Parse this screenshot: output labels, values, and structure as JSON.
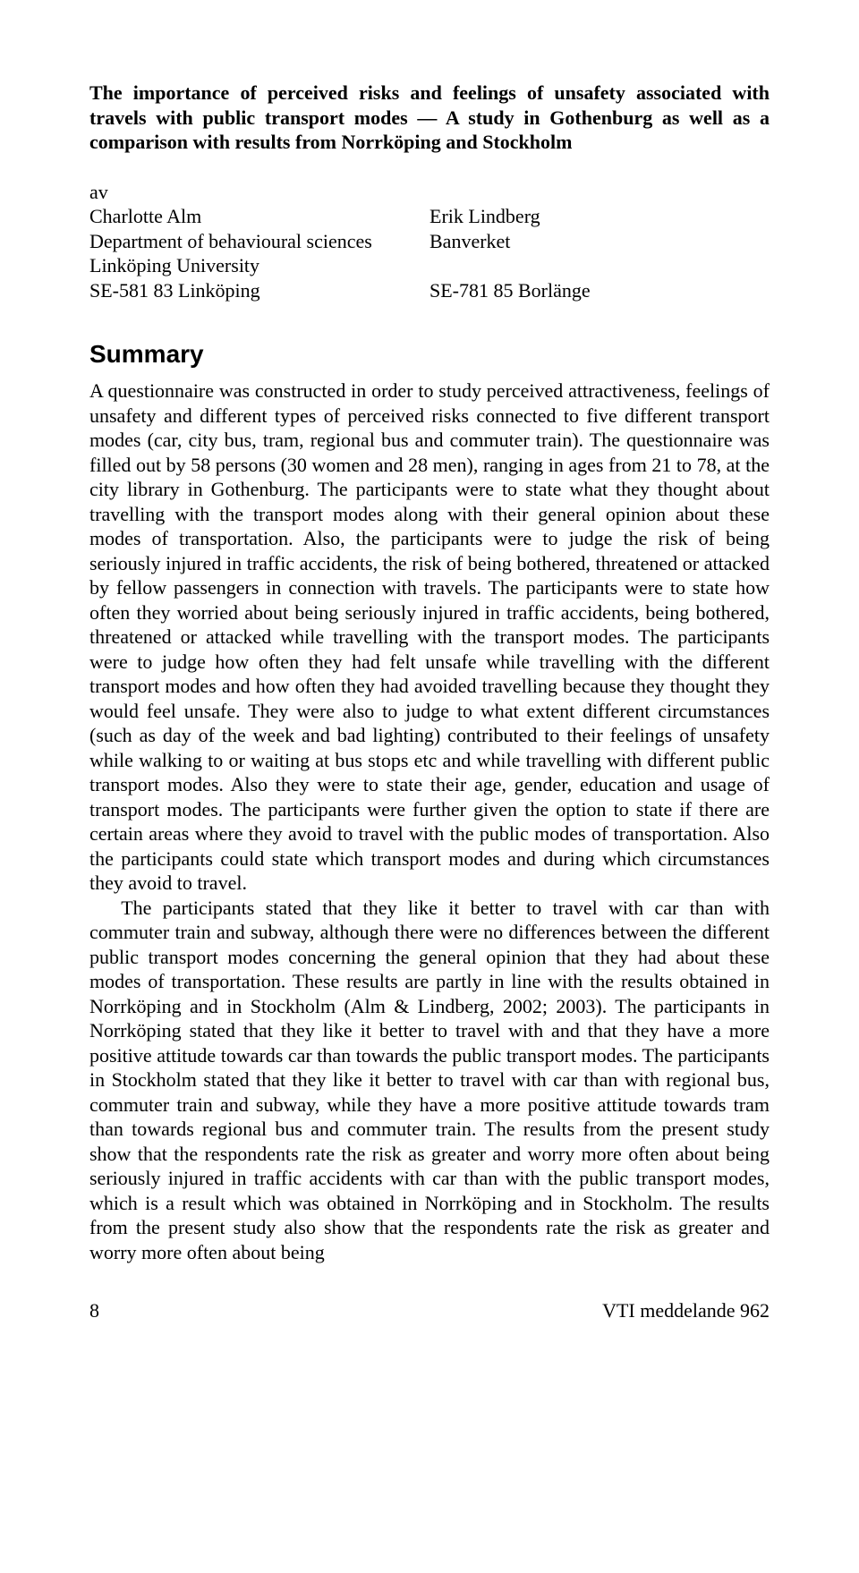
{
  "title": "The importance of perceived risks and feelings of unsafety associated with travels with public transport modes — A study in Gothenburg as well as a comparison with results from Norrköping and Stockholm",
  "authors": {
    "by_label": "av",
    "left": {
      "name": "Charlotte Alm",
      "dept": "Department of behavioural sciences",
      "uni": "Linköping University",
      "addr": "SE-581 83 Linköping"
    },
    "right": {
      "name": "Erik Lindberg",
      "org": "Banverket",
      "addr": "SE-781 85 Borlänge"
    }
  },
  "summary_heading": "Summary",
  "summary_p1": "A questionnaire was constructed in order to study perceived attractiveness, feelings of unsafety and different types of perceived risks connected to five different transport modes (car, city bus, tram, regional bus and commuter train). The questionnaire was filled out by 58 persons (30 women and 28 men), ranging in ages from 21 to 78, at the city library in Gothenburg. The participants were to state what they thought about travelling with the transport modes along with their general opinion about these modes of transportation. Also, the participants were to judge the risk of being seriously injured in traffic accidents, the risk of being bothered, threatened or attacked by fellow passengers in connection with travels. The participants were to state how often they worried about being seriously injured in traffic accidents, being bothered, threatened or attacked while travelling with the transport modes. The participants were to judge how often they had felt unsafe while travelling with the different transport modes and how often they had avoided travelling because they thought they would feel unsafe. They were also to judge to what extent different circumstances (such as day of the week and bad lighting) contributed to their feelings of unsafety while walking to or waiting at bus stops etc and while travelling with different public transport modes. Also they were to state their age, gender, education and usage of transport modes. The participants were further given the option to state if there are certain areas where they avoid to travel with the public modes of transportation. Also the participants could state which transport modes and during which circumstances they avoid to travel.",
  "summary_p2": "The participants stated that they like it better to travel with car than with commuter train and subway, although there were no differences between the different public transport modes concerning the general opinion that they had about these modes of transportation. These results are partly in line with the results obtained in Norrköping and in Stockholm (Alm & Lindberg, 2002; 2003). The participants in Norrköping stated that they like it better to travel with and that they have a more positive attitude towards car than towards the public transport modes. The participants in Stockholm stated that they like it better to travel with car than with regional bus, commuter train and subway, while they have a more positive attitude towards tram than towards regional bus and commuter train. The results from the present study show that the respondents rate the risk as greater and worry more often about being seriously injured in traffic accidents with car than with the public transport modes, which is a result which was obtained in Norrköping and in Stockholm. The results from the present study also show that the respondents rate the risk as greater and worry more often about being",
  "footer": {
    "page": "8",
    "doc": "VTI meddelande 962"
  }
}
